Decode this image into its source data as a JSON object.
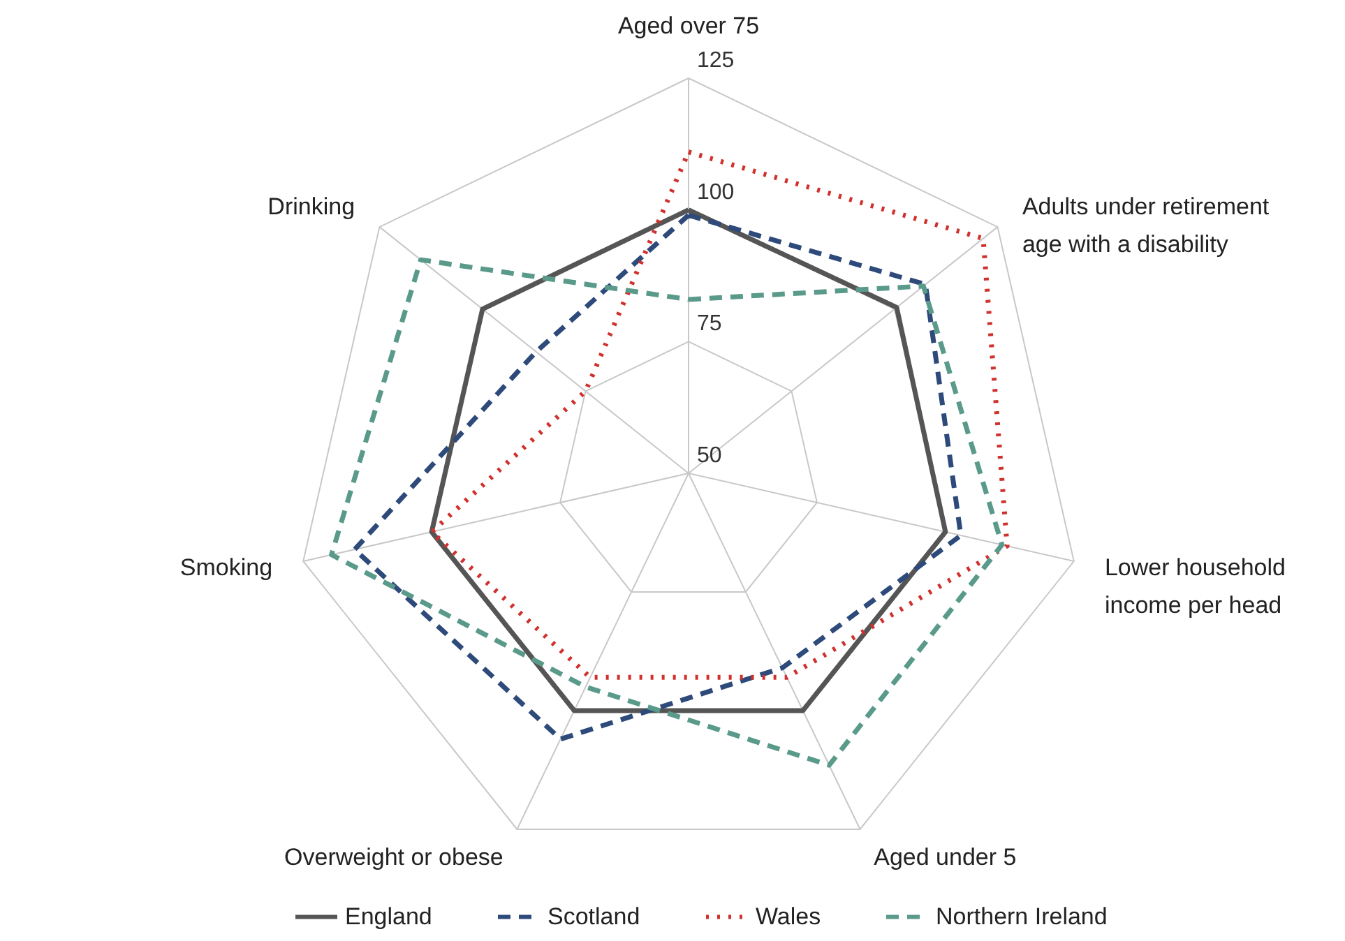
{
  "chart_data": {
    "type": "radar",
    "categories": [
      "Aged over 75",
      "Adults under retirement age with a disability",
      "Lower household income per head",
      "Aged under 5",
      "Overweight or obese",
      "Smoking",
      "Drinking"
    ],
    "ylim": [
      50,
      125
    ],
    "yticks": [
      50,
      75,
      100,
      125
    ],
    "grid": true,
    "legend": "bottom",
    "marker": "none",
    "series": [
      {
        "name": "England",
        "color": "#555555",
        "line_style": "solid",
        "values": [
          100,
          100.5,
          100,
          100,
          100,
          100,
          100
        ]
      },
      {
        "name": "Scotland",
        "color": "#2e4a7a",
        "line_style": "dashed",
        "values": [
          99,
          107.5,
          103,
          91,
          106,
          115,
          87
        ]
      },
      {
        "name": "Wales",
        "color": "#d0312d",
        "line_style": "dotted",
        "values": [
          111,
          121.5,
          112,
          93,
          93,
          100,
          75
        ]
      },
      {
        "name": "Northern Ireland",
        "color": "#5a9a8a",
        "line_style": "dashed",
        "values": [
          83,
          107,
          111,
          111.5,
          95,
          119.5,
          115
        ]
      }
    ]
  }
}
